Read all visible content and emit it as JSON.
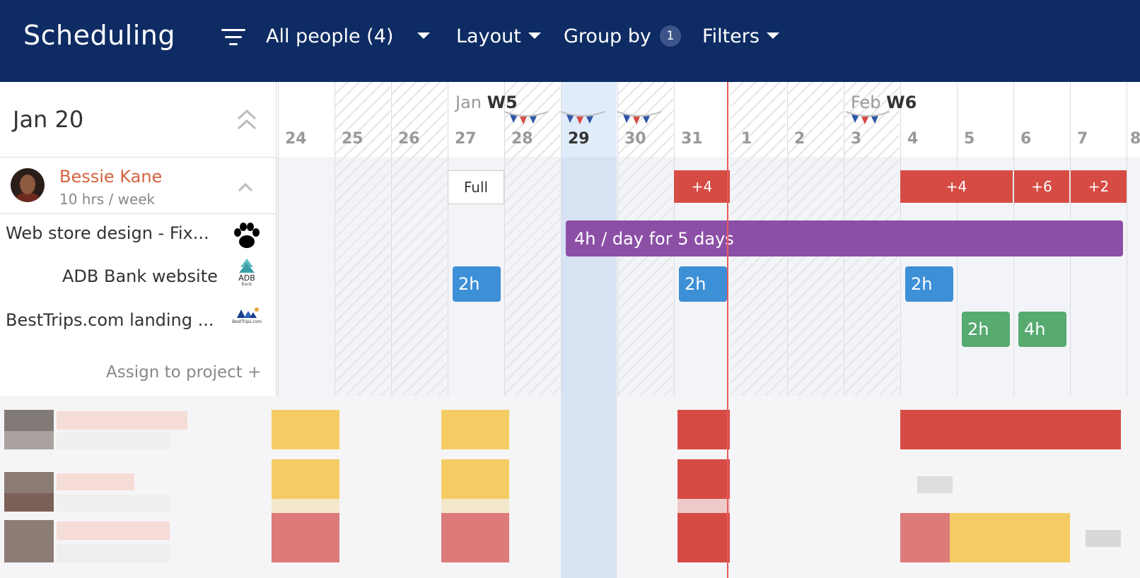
{
  "header": {
    "title": "Scheduling",
    "people_filter": "All people (4)",
    "layout_label": "Layout",
    "group_by_label": "Group by",
    "group_by_count": "1",
    "filters_label": "Filters"
  },
  "calendar": {
    "current_date": "Jan 20",
    "weeks": [
      {
        "month": "Jan",
        "week": "W5"
      },
      {
        "month": "Feb",
        "week": "W6"
      }
    ],
    "days": [
      "24",
      "25",
      "26",
      "27",
      "28",
      "29",
      "30",
      "31",
      "1",
      "2",
      "3",
      "4",
      "5",
      "6",
      "7",
      "8"
    ]
  },
  "person": {
    "name": "Bessie Kane",
    "hours": "10 hrs / week",
    "projects": [
      {
        "name": "Web store design - Fix...",
        "logo": "paw-icon"
      },
      {
        "name": "ADB Bank website",
        "logo": "adb-bank-logo",
        "logo_text": "ADB",
        "logo_sub": "Bank"
      },
      {
        "name": "BestTrips.com landing ...",
        "logo": "besttrips-logo",
        "logo_text": "BestTrips.com"
      }
    ],
    "assign_label": "Assign to project +"
  },
  "allocations": {
    "full_label": "Full",
    "overbook": [
      "+4",
      "+4",
      "+6",
      "+2"
    ],
    "web_store": "4h / day for 5 days",
    "adb": [
      "2h",
      "2h",
      "2h"
    ],
    "besttrips": [
      "2h",
      "4h"
    ]
  },
  "colors": {
    "header_bg": "#0e2c63",
    "name_accent": "#d4643f",
    "overbook_red": "#d64c45",
    "purple": "#8c4fa6",
    "blue": "#3d8fd6",
    "green": "#57aa70",
    "today_line": "#e85a5a"
  }
}
